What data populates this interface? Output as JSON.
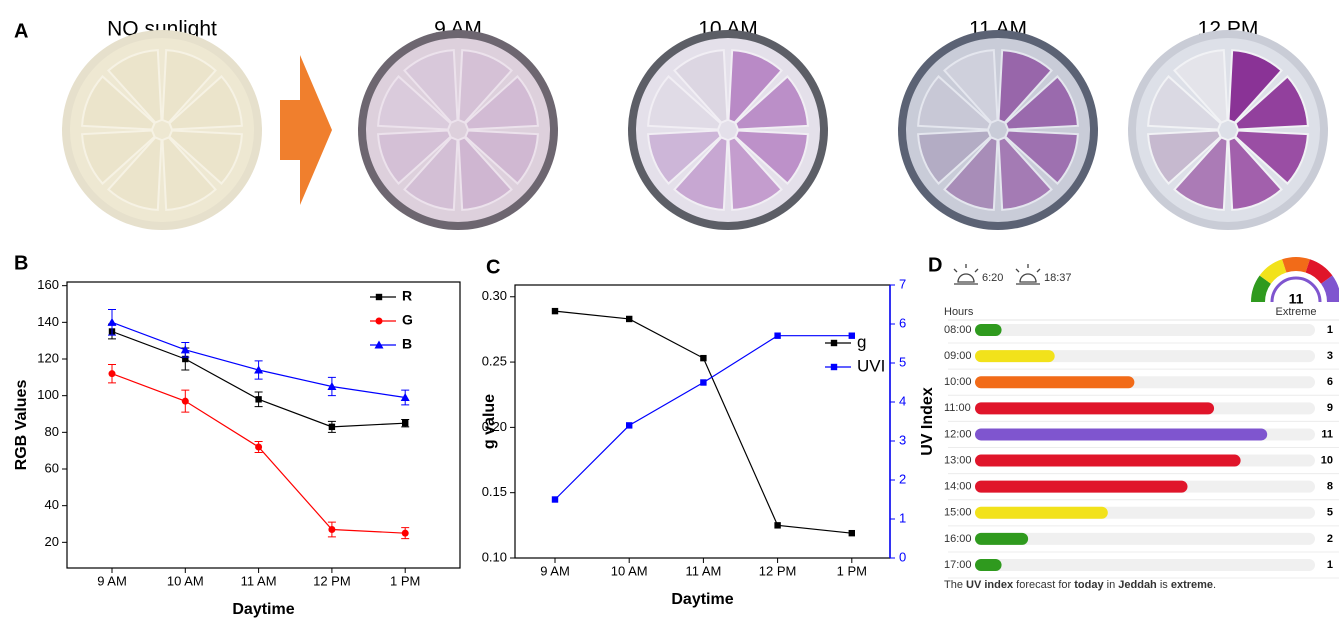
{
  "panel_labels": [
    "A",
    "B",
    "C",
    "D"
  ],
  "photos": {
    "labels": [
      "NO sunlight",
      "9 AM",
      "10 AM",
      "11 AM",
      "12 PM"
    ]
  },
  "chart_data": [
    {
      "type": "line",
      "categories": [
        "9 AM",
        "10 AM",
        "11 AM",
        "12 PM",
        "1 PM"
      ],
      "x_label": "Daytime",
      "y_label": "RGB Values",
      "ylim": [
        6,
        162
      ],
      "yticks": [
        20,
        40,
        60,
        80,
        100,
        120,
        140,
        160
      ],
      "legend": "upper right",
      "series": [
        {
          "name": "R",
          "color": "#000000",
          "marker": "square",
          "values": [
            135,
            120,
            98,
            83,
            85
          ],
          "errors": [
            4,
            6,
            4,
            3,
            2
          ]
        },
        {
          "name": "G",
          "color": "#ff0000",
          "marker": "circle",
          "values": [
            112,
            97,
            72,
            27,
            25
          ],
          "errors": [
            5,
            6,
            3,
            4,
            3
          ]
        },
        {
          "name": "B",
          "color": "#0000ff",
          "marker": "triangle",
          "values": [
            140,
            125,
            114,
            105,
            99
          ],
          "errors": [
            7,
            4,
            5,
            5,
            4
          ]
        }
      ]
    },
    {
      "type": "line",
      "categories": [
        "9 AM",
        "10 AM",
        "11 AM",
        "12 PM",
        "1 PM"
      ],
      "x_label": "Daytime",
      "y_label": "g value",
      "y2_label": "UV Index",
      "ylim": [
        0.1,
        0.309
      ],
      "yticks": [
        {
          "value": 0.1,
          "label": "0.10"
        },
        {
          "value": 0.15,
          "label": "0.15"
        },
        {
          "value": 0.2,
          "label": "0.20"
        },
        {
          "value": 0.25,
          "label": "0.25"
        },
        {
          "value": 0.3,
          "label": "0.30"
        }
      ],
      "y2lim": [
        0,
        7
      ],
      "y2ticks": [
        0,
        1,
        2,
        3,
        4,
        5,
        6,
        7
      ],
      "legend": "right",
      "series": [
        {
          "name": "g",
          "color": "#000000",
          "marker": "square",
          "values": [
            0.289,
            0.283,
            0.253,
            0.125,
            0.119
          ]
        },
        {
          "name": "UVI",
          "color": "#0000ff",
          "marker": "square",
          "axis": "y2",
          "values": [
            1.5,
            3.4,
            4.5,
            5.7,
            5.7
          ]
        }
      ]
    },
    {
      "type": "hbar",
      "sunrise": "6:20",
      "sunset": "18:37",
      "column_label": "Hours",
      "gauge_value": 11,
      "gauge_label": "Extreme",
      "categories": [
        "08:00",
        "09:00",
        "10:00",
        "11:00",
        "12:00",
        "13:00",
        "14:00",
        "15:00",
        "16:00",
        "17:00"
      ],
      "values": [
        1,
        3,
        6,
        9,
        11,
        10,
        8,
        5,
        2,
        1
      ],
      "colors": [
        "#2f9a1e",
        "#f2e21b",
        "#f26b18",
        "#e0152a",
        "#7f55cf",
        "#e0152a",
        "#e0152a",
        "#f2e21b",
        "#2f9a1e",
        "#2f9a1e"
      ],
      "xlim": [
        0,
        12.8
      ],
      "footer": [
        "The ",
        "UV index",
        " forecast for ",
        "today",
        " in ",
        "Jeddah",
        " is ",
        "extreme",
        "."
      ]
    }
  ]
}
